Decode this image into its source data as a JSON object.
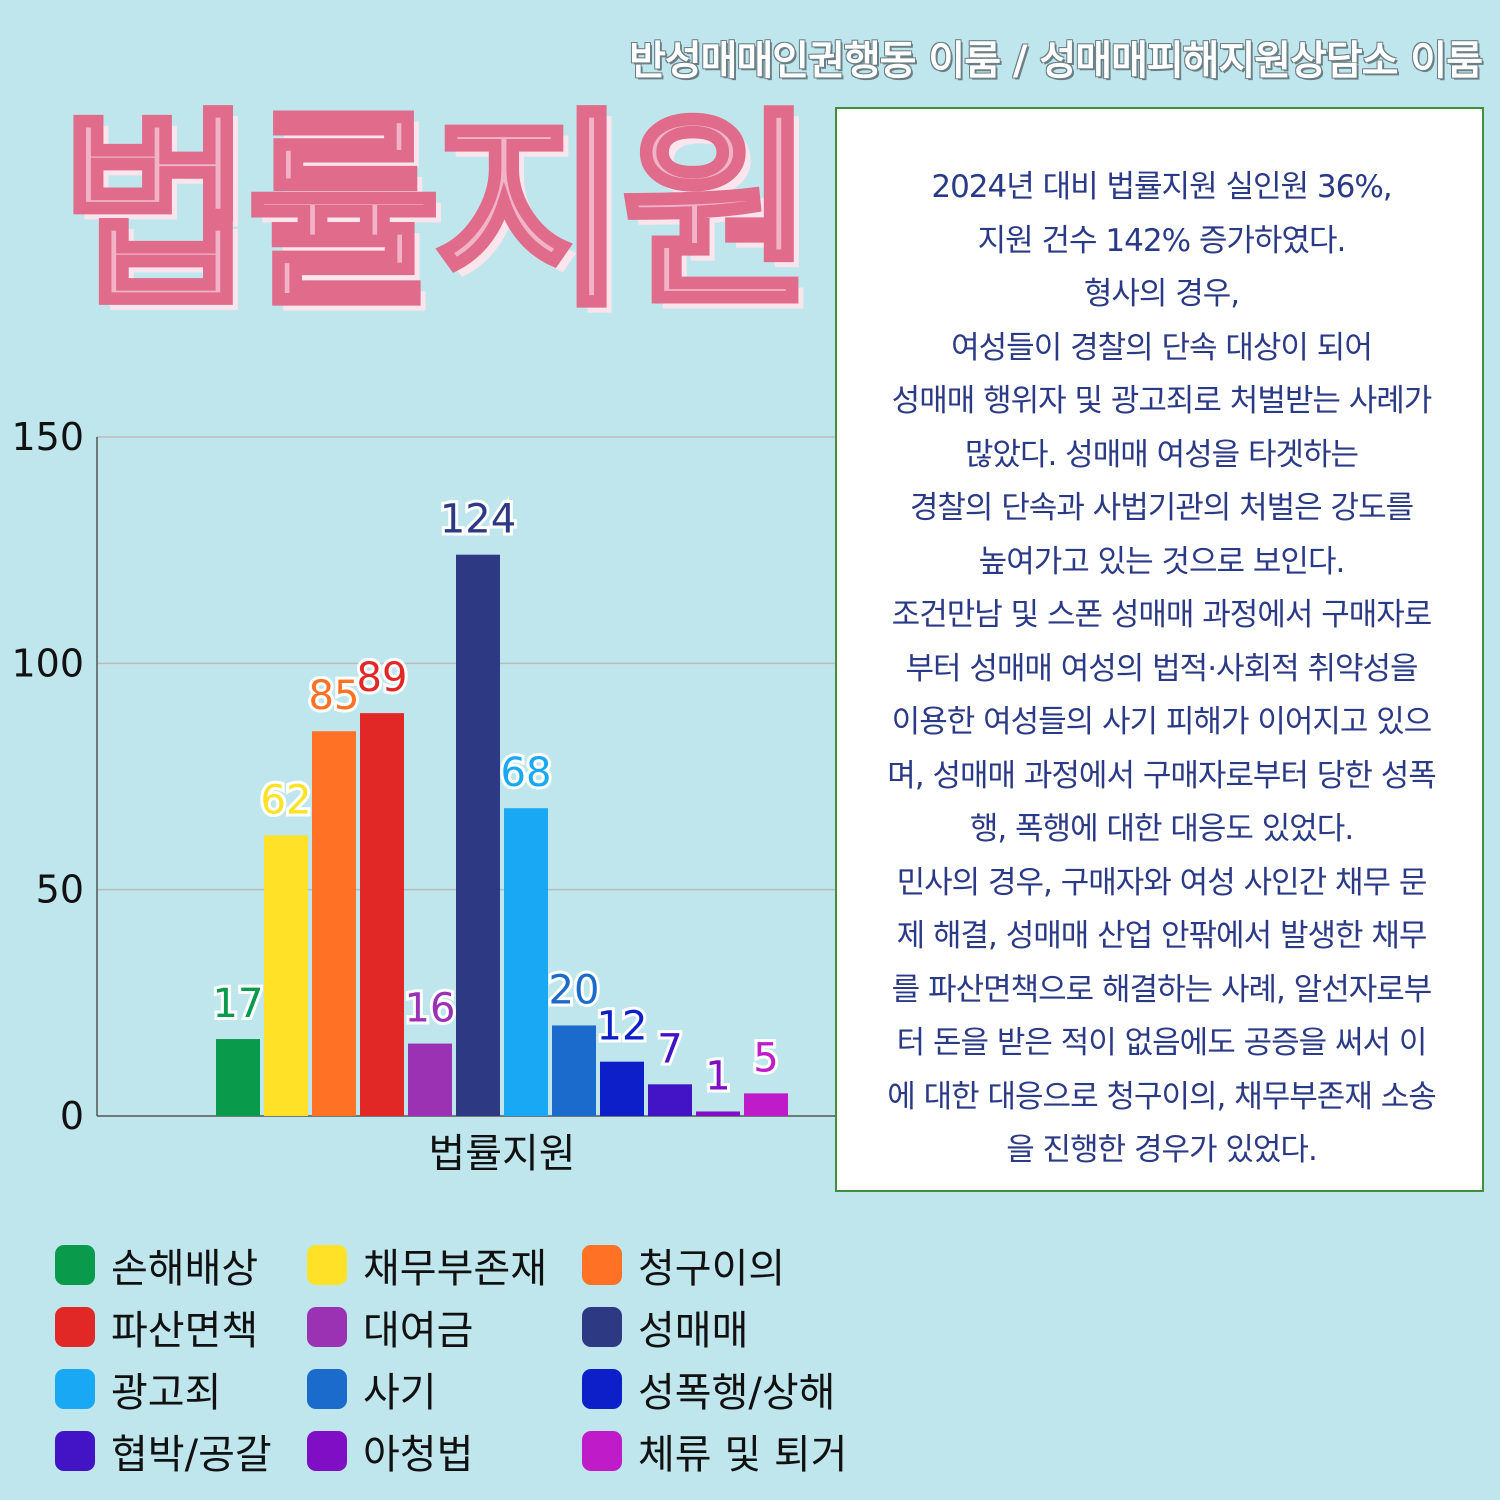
{
  "header": {
    "org": "반성매매인권행동 이룸 / 성매매피해지원상담소 이룸"
  },
  "title": "법률지원",
  "description_lines": [
    "2024년 대비 법률지원 실인원 36%,",
    "지원 건수 142% 증가하였다.",
    "형사의 경우,",
    "여성들이 경찰의 단속 대상이 되어",
    "성매매 행위자 및 광고죄로 처벌받는 사례가",
    "많았다.  성매매 여성을 타겟하는",
    "경찰의 단속과 사법기관의 처벌은 강도를",
    "높여가고 있는 것으로 보인다.",
    "조건만남 및 스폰 성매매 과정에서 구매자로",
    "부터 성매매 여성의 법적·사회적 취약성을",
    "이용한 여성들의 사기 피해가 이어지고 있으",
    "며, 성매매 과정에서 구매자로부터 당한 성폭",
    "행, 폭행에 대한 대응도 있었다.",
    "민사의 경우, 구매자와 여성 사인간 채무 문",
    "제 해결, 성매매 산업 안팎에서 발생한 채무",
    "를 파산면책으로 해결하는 사례, 알선자로부",
    "터 돈을 받은 적이 없음에도 공증을 써서 이",
    "에 대한 대응으로 청구이의, 채무부존재 소송",
    "을 진행한 경우가 있었다."
  ],
  "chart_data": {
    "type": "bar",
    "categories": [
      "법률지원"
    ],
    "ylim": [
      0,
      150
    ],
    "yticks": [
      0,
      50,
      100,
      150
    ],
    "grid": true,
    "legend_position": "bottom",
    "series": [
      {
        "name": "손해배상",
        "values": [
          17
        ],
        "color": "#0a9a4c"
      },
      {
        "name": "채무부존재",
        "values": [
          62
        ],
        "color": "#ffe227"
      },
      {
        "name": "청구이의",
        "values": [
          85
        ],
        "color": "#ff7125"
      },
      {
        "name": "파산면책",
        "values": [
          89
        ],
        "color": "#e22727"
      },
      {
        "name": "대여금",
        "values": [
          16
        ],
        "color": "#9b32b4"
      },
      {
        "name": "성매매",
        "values": [
          124
        ],
        "color": "#2e3984"
      },
      {
        "name": "광고죄",
        "values": [
          68
        ],
        "color": "#18a8f4"
      },
      {
        "name": "사기",
        "values": [
          20
        ],
        "color": "#1b6bcc"
      },
      {
        "name": "성폭행/상해",
        "values": [
          12
        ],
        "color": "#0d1fc8"
      },
      {
        "name": "협박/공갈",
        "values": [
          7
        ],
        "color": "#4313c6"
      },
      {
        "name": "아청법",
        "values": [
          1
        ],
        "color": "#7f0ec4"
      },
      {
        "name": "체류 및 퇴거",
        "values": [
          5
        ],
        "color": "#c01bc9"
      }
    ]
  }
}
